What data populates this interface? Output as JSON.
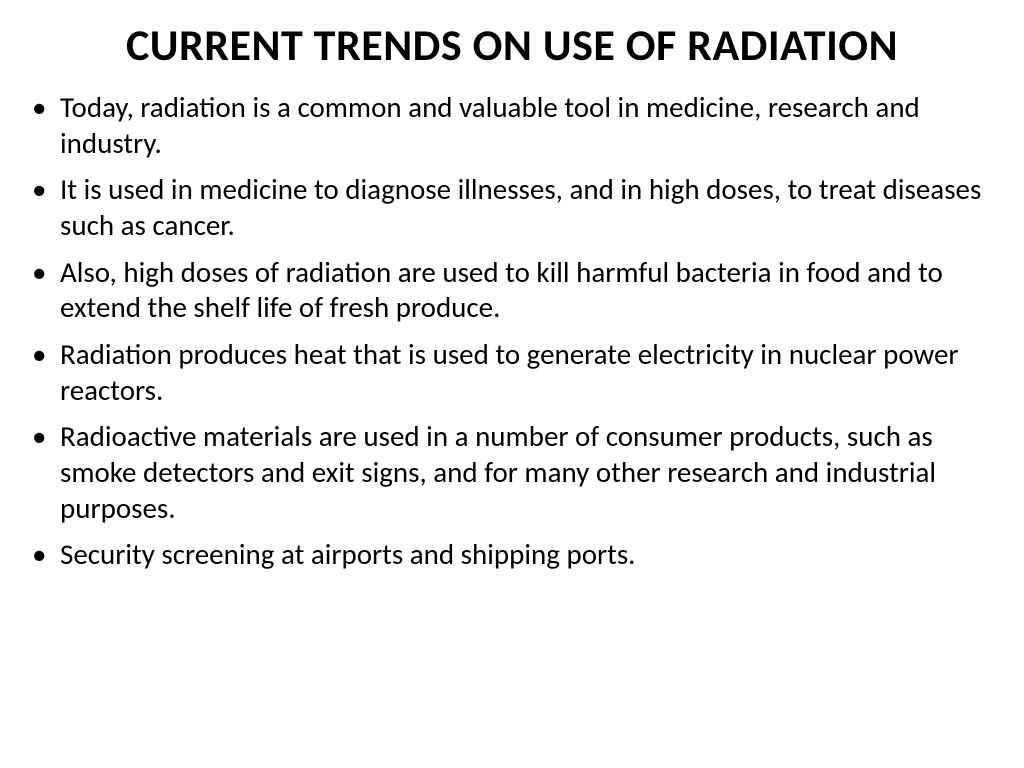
{
  "slide": {
    "title": "CURRENT TRENDS ON USE OF RADIATION",
    "bullets": [
      "Today, radiation is a common and valuable tool in medicine, research and industry.",
      "It is used in medicine to diagnose illnesses, and in high doses, to treat diseases such as cancer.",
      "Also, high doses of radiation are used to kill harmful bacteria in food and to extend the shelf life of fresh produce.",
      "Radiation produces heat that is used to generate electricity in nuclear power reactors.",
      "Radioactive materials are used in a number of consumer products, such as smoke detectors and exit signs, and for many other research and industrial purposes.",
      "Security screening at airports and shipping ports."
    ],
    "style": {
      "background_color": "#ffffff",
      "text_color": "#000000",
      "title_fontsize": 44,
      "title_fontweight": 700,
      "body_fontsize": 29,
      "body_lineheight": 1.23,
      "bullet_char": "•",
      "font_family": "Calibri"
    }
  }
}
